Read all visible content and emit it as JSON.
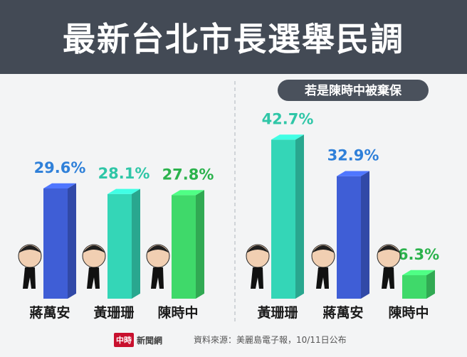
{
  "header": {
    "title": "最新台北市長選舉民調"
  },
  "footer": {
    "logo_box": "中時",
    "logo_text": "新聞網",
    "source": "資料來源：美麗島電子報，10/11日公布"
  },
  "colors": {
    "header_bg": "#434a55",
    "blue": "#2f80d9",
    "teal": "#2fc6a7",
    "green": "#2bb24c",
    "blue_bar": "#3f5ed6",
    "teal_bar": "#34d6b7",
    "green_bar": "#3fd96a"
  },
  "chart_data": [
    {
      "type": "bar",
      "title": "",
      "categories": [
        "蔣萬安",
        "黃珊珊",
        "陳時中"
      ],
      "values": [
        29.6,
        28.1,
        27.8
      ],
      "value_labels": [
        "29.6%",
        "28.1%",
        "27.8%"
      ],
      "bar_colors": [
        "blue",
        "teal",
        "green"
      ],
      "ylim": [
        0,
        45
      ]
    },
    {
      "type": "bar",
      "title": "若是陳時中被棄保",
      "categories": [
        "黃珊珊",
        "蔣萬安",
        "陳時中"
      ],
      "values": [
        42.7,
        32.9,
        6.3
      ],
      "value_labels": [
        "42.7%",
        "32.9%",
        "6.3%"
      ],
      "bar_colors": [
        "teal",
        "blue",
        "green"
      ],
      "ylim": [
        0,
        45
      ]
    }
  ]
}
